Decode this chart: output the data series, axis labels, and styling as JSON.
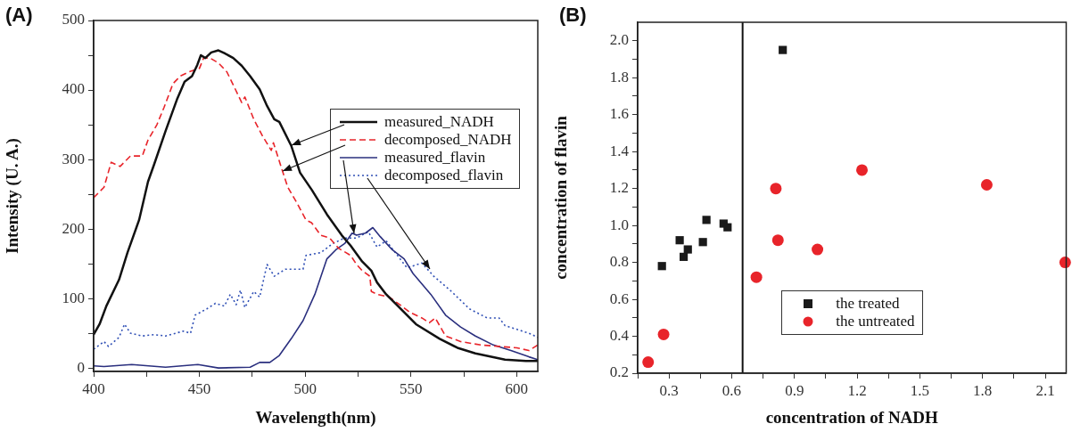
{
  "chart_data": [
    {
      "type": "line",
      "title": "(A)",
      "xlabel": "Wavelength(nm)",
      "ylabel": "Intensity (U. A.)",
      "xlim": [
        400,
        610
      ],
      "ylim": [
        -5,
        500
      ],
      "xticks": [
        400,
        {
          "value": 425,
          "label": null
        },
        450,
        {
          "value": 475,
          "label": null
        },
        500,
        {
          "value": 525,
          "label": null
        },
        550,
        {
          "value": 575,
          "label": null
        },
        600
      ],
      "yticks": [
        0,
        {
          "value": 50,
          "label": null
        },
        100,
        {
          "value": 150,
          "label": null
        },
        200,
        {
          "value": 250,
          "label": null
        },
        300,
        {
          "value": 350,
          "label": null
        },
        400,
        {
          "value": 450,
          "label": null
        },
        500
      ],
      "grid": false,
      "legend": "right",
      "marker": "none",
      "series": [
        {
          "name": "measured_NADH",
          "color": "#111111",
          "line_style": "solid",
          "x": [
            400,
            402.8,
            406,
            412,
            416,
            421.5,
            425.7,
            428.5,
            434,
            439.6,
            443,
            446.5,
            449,
            450.7,
            452.8,
            455.6,
            459,
            461.8,
            466,
            470,
            474,
            478.5,
            482,
            485.4,
            487.8,
            493.4,
            497.6,
            503.2,
            510.3,
            517.3,
            521.5,
            527,
            531.3,
            534,
            538.3,
            543.9,
            552.4,
            563.6,
            572,
            580.5,
            594.5,
            604.4,
            610
          ],
          "values": [
            48,
            63,
            89,
            127,
            166,
            213,
            268,
            292,
            341,
            388,
            412,
            420,
            436,
            450,
            446,
            454,
            457,
            453,
            446,
            435,
            420,
            401,
            377,
            358,
            354,
            320,
            281,
            256,
            221,
            191,
            176,
            153,
            140,
            123,
            106,
            89,
            63,
            42,
            29,
            21,
            12,
            10,
            10
          ]
        },
        {
          "name": "decomposed_NADH",
          "color": "#e8242a",
          "line_style": "dashed",
          "x": [
            400,
            404.9,
            408.3,
            412.5,
            417.4,
            423,
            425.7,
            429.9,
            433.3,
            437.5,
            441,
            445,
            450,
            452,
            455,
            459,
            463,
            467,
            470,
            471.5,
            475.7,
            480,
            484,
            485,
            489,
            491.8,
            496,
            500.4,
            503,
            507.4,
            511.6,
            515.9,
            521.5,
            524.3,
            527,
            530.6,
            531.3,
            534,
            539.7,
            543.9,
            549.6,
            555.2,
            558.7,
            561.5,
            566.4,
            573.5,
            583.3,
            591.7,
            600.1,
            605.8,
            610
          ],
          "values": [
            245,
            260,
            296,
            290,
            305,
            305,
            328,
            350,
            375,
            409,
            420,
            426,
            431,
            446,
            446,
            439,
            426,
            401,
            382,
            390,
            358,
            333,
            313,
            324,
            286,
            260,
            238,
            213,
            209,
            191,
            187,
            172,
            162,
            149,
            140,
            132,
            110,
            106,
            102,
            93,
            80,
            72,
            65,
            72,
            46,
            38,
            33,
            31,
            29,
            25,
            33
          ]
        },
        {
          "name": "measured_flavin",
          "color": "#2a2f7e",
          "line_style": "solid",
          "x": [
            400,
            404.9,
            418,
            434,
            449.3,
            459,
            474,
            478.5,
            483.3,
            487.8,
            493.4,
            499,
            504.6,
            510.3,
            514.5,
            518.7,
            522.2,
            524.3,
            528.5,
            532,
            535.5,
            541.2,
            546.8,
            551,
            559.4,
            566.4,
            573.5,
            580.5,
            589,
            597.3,
            605.8,
            610
          ],
          "values": [
            3,
            2,
            5,
            1,
            5,
            0,
            1,
            8,
            8,
            18,
            42,
            68,
            106,
            157,
            170,
            179,
            194,
            191,
            194,
            202,
            189,
            170,
            157,
            136,
            106,
            76,
            59,
            46,
            33,
            25,
            16,
            12
          ]
        },
        {
          "name": "decomposed_flavin",
          "color": "#2f4fb5",
          "line_style": "dotted",
          "x": [
            400,
            404.9,
            407,
            412,
            414.6,
            417.4,
            423,
            428.5,
            434,
            442.4,
            445.8,
            448,
            453.5,
            457.6,
            461.8,
            464.6,
            467.4,
            469.4,
            471.5,
            475.7,
            478.5,
            482,
            485.4,
            490.6,
            499,
            500.4,
            507.4,
            513,
            518.7,
            524.3,
            529.9,
            534,
            538.3,
            542.6,
            548.2,
            555.2,
            560.8,
            569.2,
            577.7,
            586,
            591.7,
            594.5,
            605.8,
            610
          ],
          "values": [
            27,
            38,
            31,
            44,
            63,
            50,
            46,
            48,
            46,
            53,
            50,
            76,
            85,
            93,
            89,
            106,
            91,
            112,
            87,
            110,
            102,
            149,
            132,
            142,
            142,
            162,
            166,
            179,
            187,
            187,
            196,
            174,
            183,
            166,
            144,
            151,
            132,
            110,
            85,
            72,
            72,
            61,
            50,
            44
          ]
        }
      ]
    },
    {
      "type": "scatter",
      "title": "(B)",
      "xlabel": "concentration of NADH",
      "ylabel": "concentration of flavin",
      "xlim": [
        0.15,
        2.2
      ],
      "ylim": [
        0.2,
        2.1
      ],
      "xticks": [
        {
          "value": 0.15,
          "label": null
        },
        0.3,
        {
          "value": 0.45,
          "label": null
        },
        0.6,
        {
          "value": 0.75,
          "label": null
        },
        0.9,
        {
          "value": 1.05,
          "label": null
        },
        1.2,
        {
          "value": 1.35,
          "label": null
        },
        1.5,
        {
          "value": 1.65,
          "label": null
        },
        1.8,
        {
          "value": 1.95,
          "label": null
        },
        2.1
      ],
      "yticks": [
        0.2,
        {
          "value": 0.3,
          "label": null
        },
        0.4,
        {
          "value": 0.5,
          "label": null
        },
        0.6,
        {
          "value": 0.7,
          "label": null
        },
        0.8,
        {
          "value": 0.9,
          "label": null
        },
        {
          "value": 1,
          "label": "1.0"
        },
        {
          "value": 1.1,
          "label": null
        },
        1.2,
        {
          "value": 1.3,
          "label": null
        },
        1.4,
        {
          "value": 1.5,
          "label": null
        },
        1.6,
        {
          "value": 1.7,
          "label": null
        },
        1.8,
        {
          "value": 1.9,
          "label": null
        },
        {
          "value": 2,
          "label": "2.0"
        }
      ],
      "grid": false,
      "legend": "bottom",
      "ref_lines": [
        {
          "axis": "x",
          "value": 0.652,
          "color": "#111111"
        }
      ],
      "series": [
        {
          "name": "the treated",
          "color": "#1a1a1a",
          "marker": "square",
          "x": [
            0.844,
            0.266,
            0.351,
            0.37,
            0.39,
            0.462,
            0.479,
            0.561,
            0.58
          ],
          "values": [
            1.95,
            0.78,
            0.92,
            0.83,
            0.87,
            0.91,
            1.03,
            1.01,
            0.99
          ]
        },
        {
          "name": "the untreated",
          "color": "#e8242a",
          "marker": "circle",
          "x": [
            0.2,
            0.274,
            0.718,
            0.811,
            0.821,
            1.01,
            1.223,
            1.82,
            2.195
          ],
          "values": [
            0.26,
            0.41,
            0.72,
            1.2,
            0.92,
            0.87,
            1.3,
            1.22,
            0.8
          ]
        }
      ]
    }
  ]
}
